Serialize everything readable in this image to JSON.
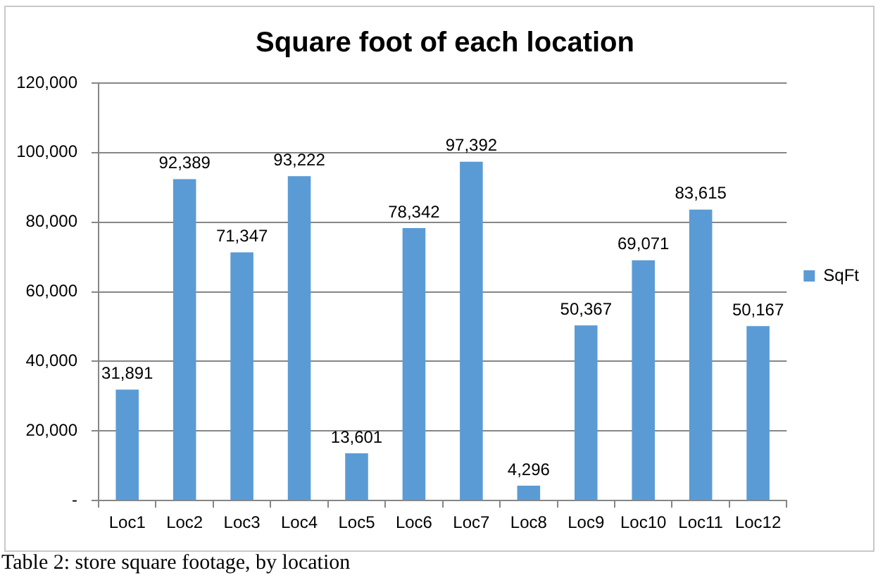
{
  "chart_data": {
    "type": "bar",
    "title": "Square foot of each location",
    "categories": [
      "Loc1",
      "Loc2",
      "Loc3",
      "Loc4",
      "Loc5",
      "Loc6",
      "Loc7",
      "Loc8",
      "Loc9",
      "Loc10",
      "Loc11",
      "Loc12"
    ],
    "series": [
      {
        "name": "SqFt",
        "color": "#5b9bd5",
        "values": [
          31891,
          92389,
          71347,
          93222,
          13601,
          78342,
          97392,
          4296,
          50367,
          69071,
          83615,
          50167
        ],
        "value_labels": [
          "31,891",
          "92,389",
          "71,347",
          "93,222",
          "13,601",
          "78,342",
          "97,392",
          "4,296",
          "50,367",
          "69,071",
          "83,615",
          "50,167"
        ]
      }
    ],
    "ylim": [
      0,
      120000
    ],
    "yticks": [
      {
        "value": 0,
        "label": "-"
      },
      {
        "value": 20000,
        "label": "20,000"
      },
      {
        "value": 40000,
        "label": "40,000"
      },
      {
        "value": 60000,
        "label": "60,000"
      },
      {
        "value": 80000,
        "label": "80,000"
      },
      {
        "value": 100000,
        "label": "100,000"
      },
      {
        "value": 120000,
        "label": "120,000"
      }
    ],
    "grid": "y",
    "legend": "right",
    "annotations": [
      "Table 2: store square footage, by location"
    ]
  }
}
